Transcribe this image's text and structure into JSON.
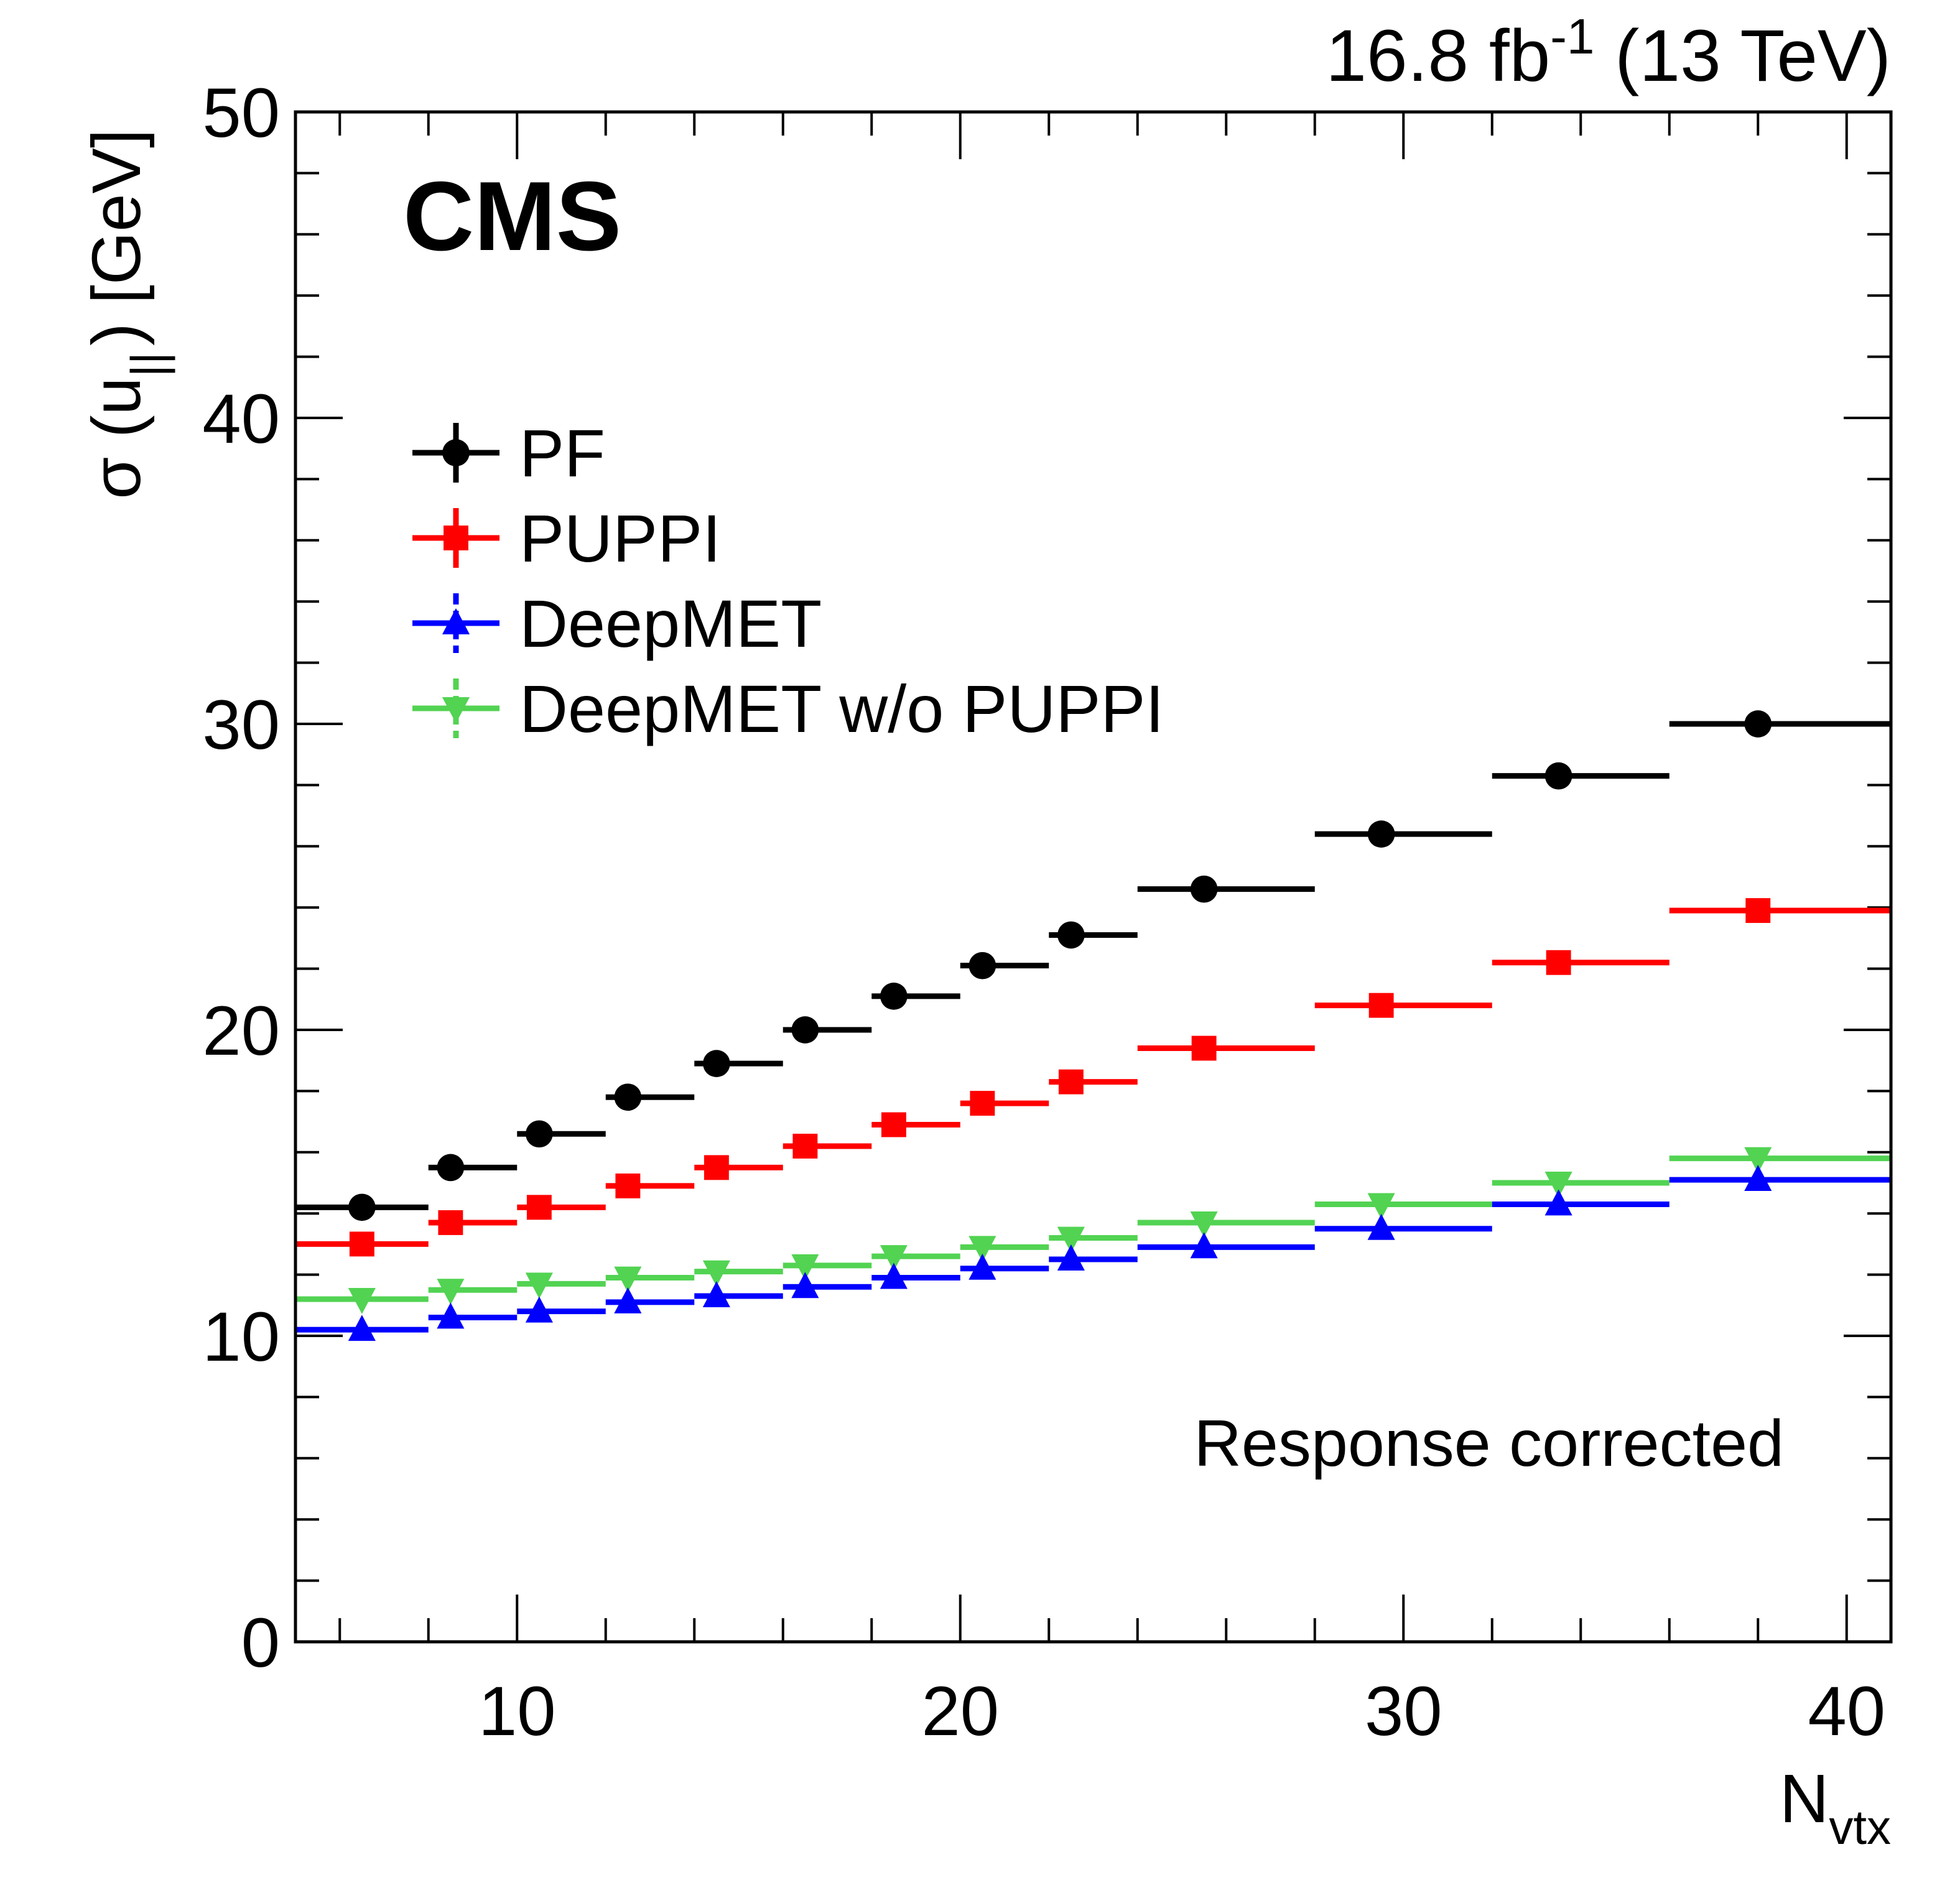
{
  "header": {
    "lumi_prefix": "16.8 fb",
    "lumi_exponent": "-1",
    "lumi_suffix": " (13 TeV)"
  },
  "labels": {
    "experiment": "CMS",
    "annotation": "Response corrected",
    "ylabel_sigma": "σ (u",
    "ylabel_sub": "||",
    "ylabel_rest": ") [GeV]",
    "xlabel_main": "N",
    "xlabel_sub": "vtx"
  },
  "chart_data": {
    "type": "scatter",
    "xlabel": "N_vtx",
    "ylabel": "σ (u_||) [GeV]",
    "xlim": [
      5,
      41
    ],
    "ylim": [
      0,
      50
    ],
    "x_ticks": [
      "10",
      "20",
      "30",
      "40"
    ],
    "y_ticks": [
      "0",
      "10",
      "20",
      "30",
      "40",
      "50"
    ],
    "legend_position": "top-left",
    "bins": [
      [
        5,
        8
      ],
      [
        8,
        10
      ],
      [
        10,
        12
      ],
      [
        12,
        14
      ],
      [
        14,
        16
      ],
      [
        16,
        18
      ],
      [
        18,
        20
      ],
      [
        20,
        22
      ],
      [
        22,
        24
      ],
      [
        24,
        28
      ],
      [
        28,
        32
      ],
      [
        32,
        36
      ],
      [
        36,
        41
      ]
    ],
    "x": [
      6.5,
      8.5,
      10.5,
      12.5,
      14.5,
      16.5,
      18.5,
      20.5,
      22.5,
      25.5,
      29.5,
      33.5,
      38
    ],
    "series": [
      {
        "name": "PF",
        "color": "#000000",
        "marker": "circle",
        "values": [
          14.2,
          15.5,
          16.6,
          17.8,
          18.9,
          20.0,
          21.1,
          22.1,
          23.1,
          24.6,
          26.4,
          28.3,
          30.0
        ]
      },
      {
        "name": "PUPPI",
        "color": "#ff0000",
        "marker": "square",
        "values": [
          13.0,
          13.7,
          14.2,
          14.9,
          15.5,
          16.2,
          16.9,
          17.6,
          18.3,
          19.4,
          20.8,
          22.2,
          23.9
        ]
      },
      {
        "name": "DeepMET",
        "color": "#0000ff",
        "marker": "triangle-up",
        "values": [
          10.2,
          10.6,
          10.8,
          11.1,
          11.3,
          11.6,
          11.9,
          12.2,
          12.5,
          12.9,
          13.5,
          14.3,
          15.1
        ]
      },
      {
        "name": "DeepMET w/o PUPPI",
        "color": "#52d352",
        "marker": "triangle-down",
        "values": [
          11.2,
          11.5,
          11.7,
          11.9,
          12.1,
          12.3,
          12.6,
          12.9,
          13.2,
          13.7,
          14.3,
          15.0,
          15.8
        ]
      }
    ]
  }
}
